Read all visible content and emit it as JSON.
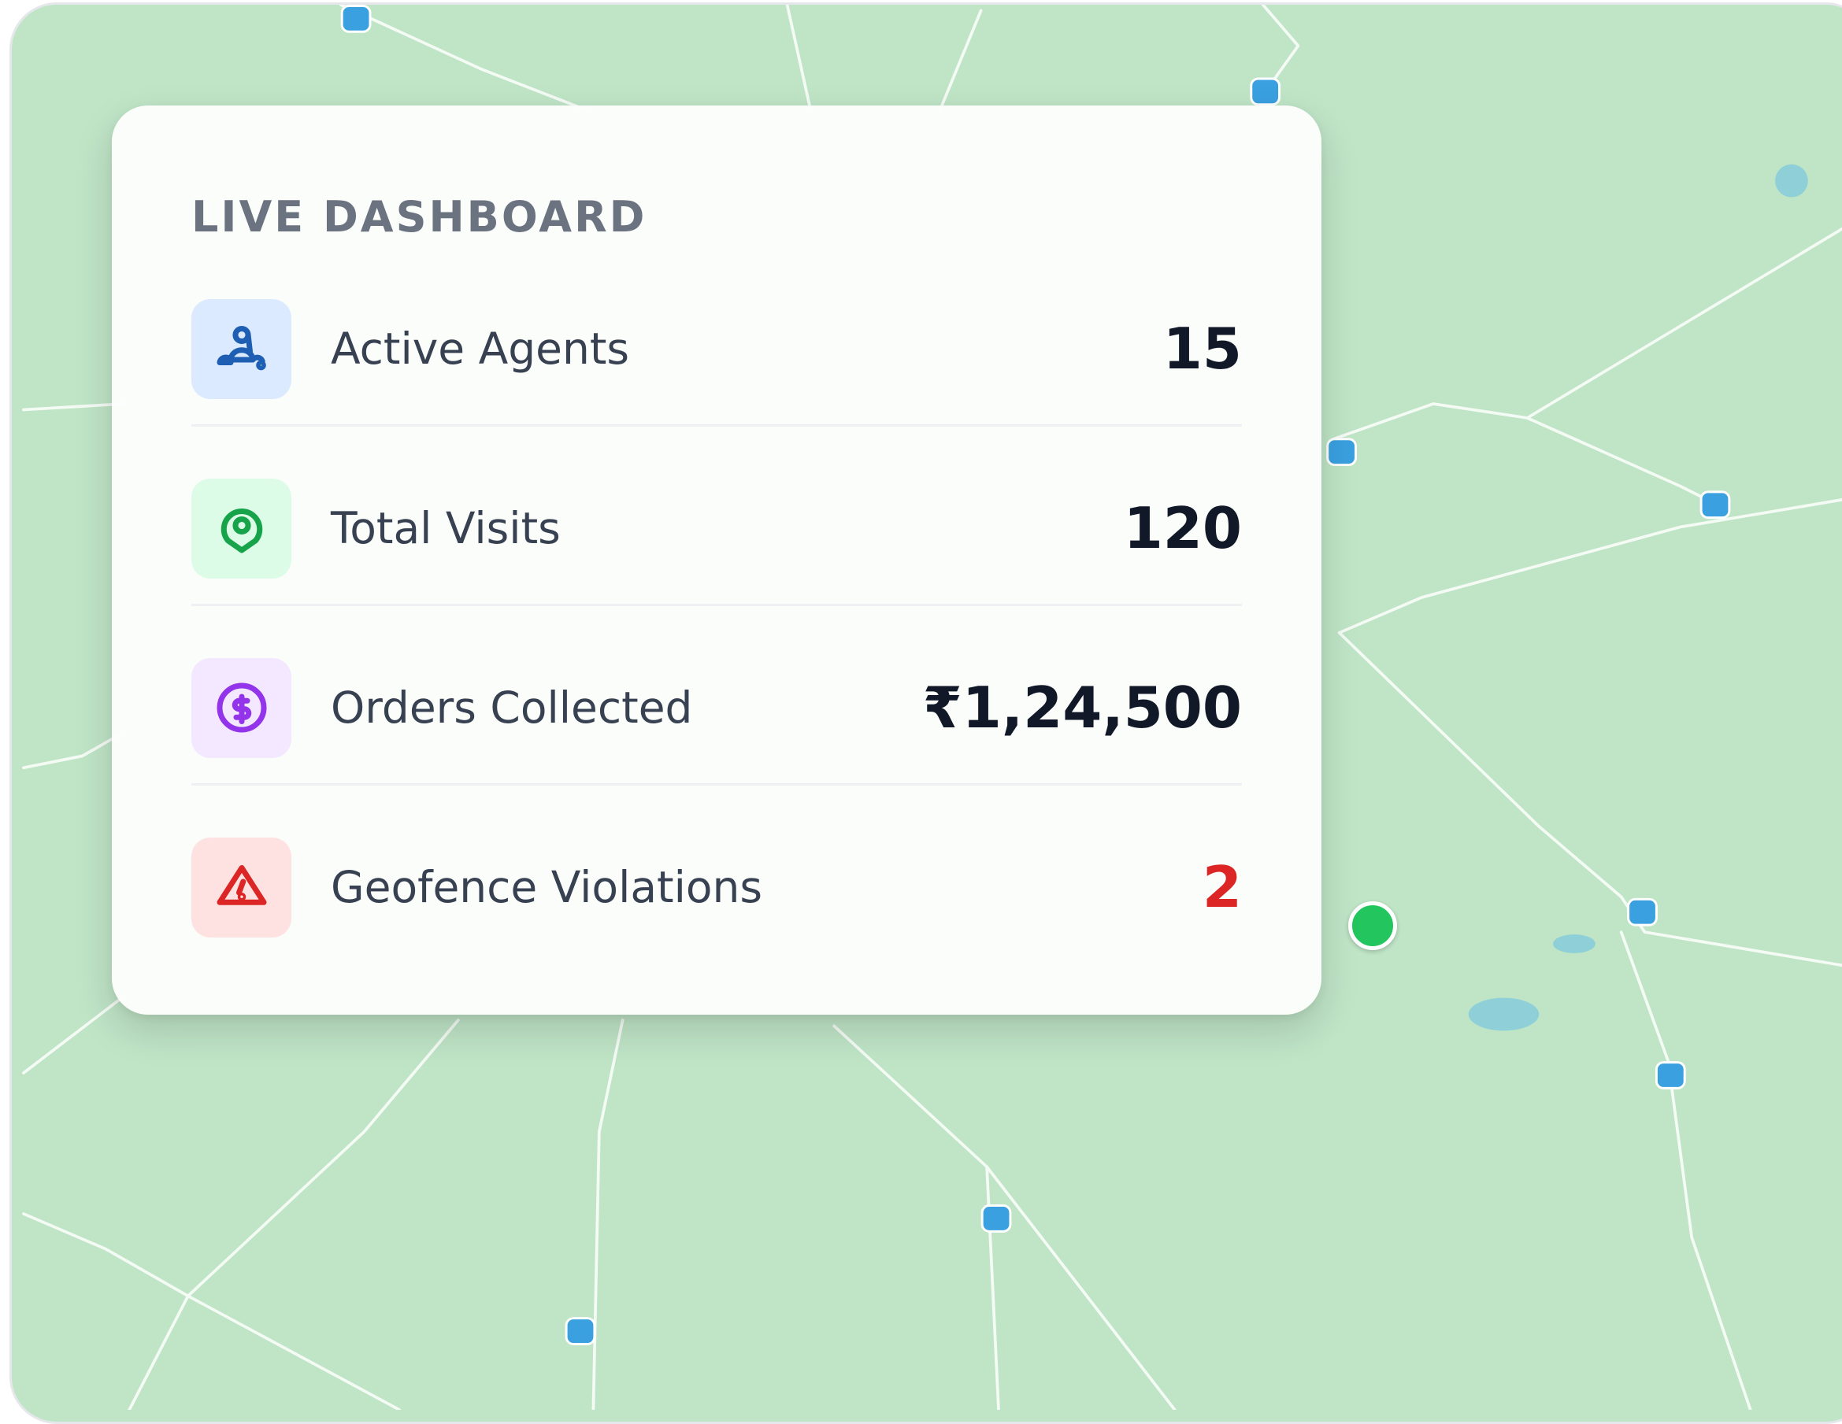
{
  "dashboard": {
    "title": "LIVE DASHBOARD",
    "metrics": [
      {
        "label": "Active Agents",
        "value": "15",
        "icon": "users-icon",
        "icon_color": "#1e5fb4",
        "icon_bg": "#dbeafe",
        "value_color": "#111827"
      },
      {
        "label": "Total Visits",
        "value": "120",
        "icon": "map-pin-icon",
        "icon_color": "#16a34a",
        "icon_bg": "#dcfce7",
        "value_color": "#111827"
      },
      {
        "label": "Orders Collected",
        "value": "₹1,24,500",
        "icon": "dollar-circle-icon",
        "icon_color": "#9333ea",
        "icon_bg": "#f3e8ff",
        "value_color": "#111827"
      },
      {
        "label": "Geofence Violations",
        "value": "2",
        "icon": "warning-triangle-icon",
        "icon_color": "#dc2626",
        "icon_bg": "#fee2e2",
        "value_color": "#dc2626"
      }
    ]
  },
  "map": {
    "background_color": "#bfe4c6",
    "road_color": "#ffffff",
    "agent_marker_color": "#22c55e"
  }
}
